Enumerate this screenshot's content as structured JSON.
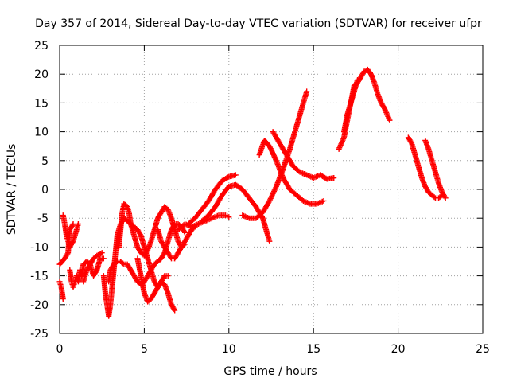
{
  "chart_data": {
    "type": "scatter",
    "title": "Day 357 of 2014, Sidereal Day-to-day VTEC variation (SDTVAR) for receiver ufpr",
    "xlabel": "GPS time / hours",
    "ylabel": "SDTVAR / TECUs",
    "xlim": [
      0,
      25
    ],
    "ylim": [
      -25,
      25
    ],
    "x_ticks": [
      0,
      5,
      10,
      15,
      20,
      25
    ],
    "y_ticks": [
      -25,
      -20,
      -15,
      -10,
      -5,
      0,
      5,
      10,
      15,
      20,
      25
    ],
    "x_tick_labels": [
      "0",
      "5",
      "10",
      "15",
      "20",
      "25"
    ],
    "y_tick_labels": [
      "-25",
      "-20",
      "-15",
      "-10",
      "-5",
      "0",
      "5",
      "10",
      "15",
      "20",
      "25"
    ],
    "grid": true,
    "grid_style": "dotted",
    "marker": "+",
    "series": [
      {
        "color": "#ff0000",
        "points": [
          [
            0.0,
            -13
          ],
          [
            0.3,
            -12
          ],
          [
            0.5,
            -11
          ],
          [
            0.6,
            -7
          ],
          [
            0.8,
            -6
          ]
        ]
      },
      {
        "color": "#ff0000",
        "points": [
          [
            0.0,
            -16
          ],
          [
            0.1,
            -17
          ],
          [
            0.2,
            -19
          ]
        ]
      },
      {
        "color": "#ff0000",
        "points": [
          [
            0.2,
            -4.5
          ],
          [
            0.3,
            -6
          ],
          [
            0.4,
            -8
          ],
          [
            0.5,
            -9
          ],
          [
            0.6,
            -10
          ],
          [
            0.8,
            -9
          ],
          [
            1.0,
            -7
          ],
          [
            1.1,
            -6
          ]
        ]
      },
      {
        "color": "#ff0000",
        "points": [
          [
            0.6,
            -14
          ],
          [
            0.7,
            -16
          ],
          [
            0.8,
            -17
          ],
          [
            0.9,
            -16
          ],
          [
            1.0,
            -15
          ],
          [
            1.1,
            -16
          ],
          [
            1.2,
            -14
          ]
        ]
      },
      {
        "color": "#ff0000",
        "points": [
          [
            1.3,
            -15
          ],
          [
            1.4,
            -13
          ],
          [
            1.6,
            -12.5
          ],
          [
            1.8,
            -13
          ],
          [
            2.0,
            -15
          ],
          [
            2.2,
            -14
          ],
          [
            2.4,
            -12
          ],
          [
            2.6,
            -12
          ]
        ]
      },
      {
        "color": "#ff0000",
        "points": [
          [
            1.4,
            -16
          ],
          [
            1.6,
            -14
          ],
          [
            1.8,
            -13
          ],
          [
            2.0,
            -12
          ],
          [
            2.2,
            -11.5
          ],
          [
            2.5,
            -11
          ]
        ]
      },
      {
        "color": "#ff0000",
        "points": [
          [
            2.6,
            -15
          ],
          [
            2.7,
            -18
          ],
          [
            2.8,
            -20
          ],
          [
            2.9,
            -22
          ],
          [
            3.0,
            -20
          ],
          [
            3.1,
            -17
          ],
          [
            3.2,
            -14
          ],
          [
            3.3,
            -11
          ],
          [
            3.4,
            -8
          ],
          [
            3.6,
            -6
          ],
          [
            3.8,
            -5
          ],
          [
            4.0,
            -5.5
          ],
          [
            4.2,
            -6
          ],
          [
            4.4,
            -6.5
          ],
          [
            4.6,
            -7
          ],
          [
            4.8,
            -8
          ],
          [
            5.0,
            -10
          ],
          [
            5.2,
            -12
          ],
          [
            5.4,
            -14
          ],
          [
            5.6,
            -16
          ],
          [
            5.8,
            -17
          ],
          [
            6.0,
            -16
          ],
          [
            6.2,
            -15
          ],
          [
            6.4,
            -15
          ]
        ]
      },
      {
        "color": "#ff0000",
        "points": [
          [
            2.9,
            -16
          ],
          [
            3.0,
            -14
          ],
          [
            3.2,
            -13
          ],
          [
            3.4,
            -12.5
          ],
          [
            3.6,
            -12.5
          ],
          [
            3.8,
            -13
          ],
          [
            4.0,
            -13
          ],
          [
            4.2,
            -14
          ],
          [
            4.4,
            -15
          ],
          [
            4.6,
            -16
          ],
          [
            4.8,
            -16.5
          ],
          [
            5.0,
            -16
          ],
          [
            5.2,
            -15
          ],
          [
            5.4,
            -14
          ],
          [
            5.6,
            -13
          ],
          [
            5.8,
            -12.5
          ],
          [
            6.0,
            -12
          ],
          [
            6.2,
            -11
          ],
          [
            6.4,
            -9
          ],
          [
            6.6,
            -7
          ],
          [
            6.8,
            -6
          ],
          [
            7.0,
            -6
          ],
          [
            7.2,
            -6.5
          ],
          [
            7.4,
            -7.5
          ]
        ]
      },
      {
        "color": "#ff0000",
        "points": [
          [
            3.5,
            -10
          ],
          [
            3.6,
            -7
          ],
          [
            3.7,
            -4
          ],
          [
            3.8,
            -2.5
          ],
          [
            4.0,
            -3
          ],
          [
            4.1,
            -4
          ],
          [
            4.2,
            -6
          ],
          [
            4.4,
            -8
          ],
          [
            4.6,
            -10
          ],
          [
            4.8,
            -11
          ],
          [
            5.0,
            -11.5
          ],
          [
            5.2,
            -10.5
          ],
          [
            5.4,
            -9
          ],
          [
            5.6,
            -7
          ],
          [
            5.8,
            -5
          ],
          [
            6.0,
            -4
          ],
          [
            6.2,
            -3
          ],
          [
            6.4,
            -3.5
          ],
          [
            6.6,
            -5
          ],
          [
            6.8,
            -7
          ],
          [
            7.0,
            -9
          ],
          [
            7.2,
            -10
          ],
          [
            7.4,
            -9
          ],
          [
            7.6,
            -8
          ],
          [
            7.8,
            -7
          ],
          [
            8.0,
            -6.5
          ]
        ]
      },
      {
        "color": "#ff0000",
        "points": [
          [
            4.6,
            -12
          ],
          [
            4.8,
            -15
          ],
          [
            5.0,
            -18
          ],
          [
            5.2,
            -19.5
          ],
          [
            5.4,
            -19
          ],
          [
            5.6,
            -18
          ],
          [
            5.8,
            -17
          ],
          [
            6.0,
            -16
          ],
          [
            6.2,
            -16.5
          ],
          [
            6.4,
            -18
          ],
          [
            6.6,
            -20
          ],
          [
            6.8,
            -21
          ]
        ]
      },
      {
        "color": "#ff0000",
        "points": [
          [
            5.8,
            -7
          ],
          [
            6.0,
            -9
          ],
          [
            6.2,
            -10
          ],
          [
            6.4,
            -11
          ],
          [
            6.6,
            -12
          ],
          [
            6.8,
            -12
          ],
          [
            7.0,
            -11
          ],
          [
            7.2,
            -10
          ],
          [
            7.4,
            -9.5
          ]
        ]
      },
      {
        "color": "#ff0000",
        "points": [
          [
            7.0,
            -7
          ],
          [
            7.4,
            -6
          ],
          [
            7.8,
            -6.5
          ],
          [
            8.2,
            -6
          ],
          [
            8.6,
            -5.5
          ],
          [
            9.0,
            -5
          ],
          [
            9.4,
            -4.5
          ],
          [
            9.8,
            -4.5
          ],
          [
            10.0,
            -4.8
          ]
        ]
      },
      {
        "color": "#ff0000",
        "points": [
          [
            7.6,
            -6
          ],
          [
            8.0,
            -5
          ],
          [
            8.4,
            -3.5
          ],
          [
            8.8,
            -2
          ],
          [
            9.2,
            0
          ],
          [
            9.6,
            1.5
          ],
          [
            10.0,
            2.2
          ],
          [
            10.4,
            2.5
          ]
        ]
      },
      {
        "color": "#ff0000",
        "points": [
          [
            8.4,
            -5.5
          ],
          [
            8.8,
            -4.5
          ],
          [
            9.2,
            -3
          ],
          [
            9.6,
            -1
          ],
          [
            10.0,
            0.5
          ],
          [
            10.4,
            0.8
          ],
          [
            10.8,
            0
          ],
          [
            11.2,
            -1.5
          ],
          [
            11.6,
            -3
          ],
          [
            12.0,
            -5
          ],
          [
            12.2,
            -7
          ],
          [
            12.4,
            -9
          ]
        ]
      },
      {
        "color": "#ff0000",
        "points": [
          [
            10.8,
            -4.5
          ],
          [
            11.2,
            -5
          ],
          [
            11.6,
            -5
          ],
          [
            12.0,
            -4
          ],
          [
            12.4,
            -2
          ],
          [
            12.8,
            0.5
          ],
          [
            13.2,
            3.5
          ],
          [
            13.6,
            7
          ],
          [
            14.0,
            11
          ],
          [
            14.4,
            15
          ],
          [
            14.6,
            17
          ]
        ]
      },
      {
        "color": "#ff0000",
        "points": [
          [
            11.8,
            6
          ],
          [
            12.1,
            8.5
          ],
          [
            12.4,
            7.5
          ],
          [
            12.8,
            5
          ],
          [
            13.2,
            2
          ],
          [
            13.6,
            0
          ],
          [
            14.0,
            -1
          ],
          [
            14.4,
            -2
          ],
          [
            14.8,
            -2.5
          ],
          [
            15.2,
            -2.5
          ],
          [
            15.6,
            -2
          ]
        ]
      },
      {
        "color": "#ff0000",
        "points": [
          [
            12.6,
            10
          ],
          [
            13.0,
            8
          ],
          [
            13.4,
            6
          ],
          [
            13.8,
            4
          ],
          [
            14.2,
            3
          ],
          [
            14.6,
            2.5
          ],
          [
            15.0,
            2
          ],
          [
            15.4,
            2.5
          ],
          [
            15.8,
            1.8
          ],
          [
            16.2,
            2
          ]
        ]
      },
      {
        "color": "#ff0000",
        "points": [
          [
            16.5,
            7
          ],
          [
            16.8,
            9
          ],
          [
            17.0,
            12
          ],
          [
            17.2,
            15
          ],
          [
            17.4,
            18
          ],
          [
            17.6,
            18.5
          ],
          [
            17.8,
            19.5
          ],
          [
            18.0,
            20.5
          ],
          [
            18.2,
            20.8
          ],
          [
            18.4,
            20
          ],
          [
            18.6,
            18.5
          ],
          [
            18.8,
            16.5
          ],
          [
            19.0,
            15
          ],
          [
            19.2,
            14
          ],
          [
            19.5,
            12
          ]
        ]
      },
      {
        "color": "#ff0000",
        "points": [
          [
            16.8,
            10
          ],
          [
            17.0,
            13
          ],
          [
            17.3,
            16
          ],
          [
            17.6,
            19
          ]
        ]
      },
      {
        "color": "#ff0000",
        "points": [
          [
            20.6,
            9
          ],
          [
            20.8,
            8
          ],
          [
            21.0,
            6
          ],
          [
            21.2,
            4
          ],
          [
            21.4,
            2
          ],
          [
            21.6,
            0.5
          ],
          [
            21.8,
            -0.5
          ],
          [
            22.0,
            -1
          ],
          [
            22.2,
            -1.5
          ],
          [
            22.4,
            -1.5
          ],
          [
            22.6,
            -1
          ]
        ]
      },
      {
        "color": "#ff0000",
        "points": [
          [
            21.6,
            8.5
          ],
          [
            21.8,
            7
          ],
          [
            22.0,
            5
          ],
          [
            22.2,
            3
          ],
          [
            22.4,
            1
          ],
          [
            22.6,
            -0.5
          ],
          [
            22.8,
            -1.5
          ]
        ]
      }
    ]
  }
}
